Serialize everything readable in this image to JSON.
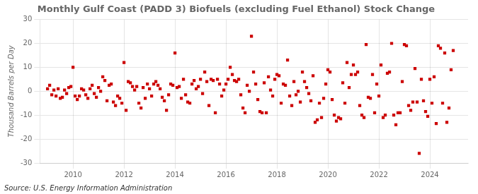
{
  "chart_data": {
    "type": "scatter",
    "title": "Monthly Gulf Coast (PADD 3) Biofuels (excluding Fuel Ethanol) Stock Change",
    "y_label": "Thousand Barrels per Day",
    "annotations": [
      "Source: U.S. Energy Information Administration"
    ],
    "color": "#cc0000",
    "marker": "square",
    "grid": true,
    "xlim": [
      2008.7,
      2025.5
    ],
    "xticks": [
      2010,
      2012,
      2014,
      2016,
      2018,
      2020,
      2022,
      2024
    ],
    "ylim": [
      -30,
      30
    ],
    "yticks": [
      -30,
      -20,
      -10,
      0,
      10,
      20,
      30
    ],
    "x": [
      2009.0,
      2009.083,
      2009.167,
      2009.25,
      2009.333,
      2009.417,
      2009.5,
      2009.583,
      2009.667,
      2009.75,
      2009.833,
      2009.917,
      2010.0,
      2010.083,
      2010.167,
      2010.25,
      2010.333,
      2010.417,
      2010.5,
      2010.583,
      2010.667,
      2010.75,
      2010.833,
      2010.917,
      2011.0,
      2011.083,
      2011.167,
      2011.25,
      2011.333,
      2011.417,
      2011.5,
      2011.583,
      2011.667,
      2011.75,
      2011.833,
      2011.917,
      2012.0,
      2012.083,
      2012.167,
      2012.25,
      2012.333,
      2012.417,
      2012.5,
      2012.583,
      2012.667,
      2012.75,
      2012.833,
      2012.917,
      2013.0,
      2013.083,
      2013.167,
      2013.25,
      2013.333,
      2013.417,
      2013.5,
      2013.583,
      2013.667,
      2013.75,
      2013.833,
      2013.917,
      2014.0,
      2014.083,
      2014.167,
      2014.25,
      2014.333,
      2014.417,
      2014.5,
      2014.583,
      2014.667,
      2014.75,
      2014.833,
      2014.917,
      2015.0,
      2015.083,
      2015.167,
      2015.25,
      2015.333,
      2015.417,
      2015.5,
      2015.583,
      2015.667,
      2015.75,
      2015.833,
      2015.917,
      2016.0,
      2016.083,
      2016.167,
      2016.25,
      2016.333,
      2016.417,
      2016.5,
      2016.583,
      2016.667,
      2016.75,
      2016.833,
      2016.917,
      2017.0,
      2017.083,
      2017.167,
      2017.25,
      2017.333,
      2017.417,
      2017.5,
      2017.583,
      2017.667,
      2017.75,
      2017.833,
      2017.917,
      2018.0,
      2018.083,
      2018.167,
      2018.25,
      2018.333,
      2018.417,
      2018.5,
      2018.583,
      2018.667,
      2018.75,
      2018.833,
      2018.917,
      2019.0,
      2019.083,
      2019.167,
      2019.25,
      2019.333,
      2019.417,
      2019.5,
      2019.583,
      2019.667,
      2019.75,
      2019.833,
      2019.917,
      2020.0,
      2020.083,
      2020.167,
      2020.25,
      2020.333,
      2020.417,
      2020.5,
      2020.583,
      2020.667,
      2020.75,
      2020.833,
      2020.917,
      2021.0,
      2021.083,
      2021.167,
      2021.25,
      2021.333,
      2021.417,
      2021.5,
      2021.583,
      2021.667,
      2021.75,
      2021.833,
      2021.917,
      2022.0,
      2022.083,
      2022.167,
      2022.25,
      2022.333,
      2022.417,
      2022.5,
      2022.583,
      2022.667,
      2022.75,
      2022.833,
      2022.917,
      2023.0,
      2023.083,
      2023.167,
      2023.25,
      2023.333,
      2023.417,
      2023.5,
      2023.583,
      2023.667,
      2023.75,
      2023.833,
      2023.917,
      2024.0,
      2024.083,
      2024.167,
      2024.25,
      2024.333,
      2024.417,
      2024.5,
      2024.583,
      2024.667,
      2024.75,
      2024.833,
      2024.917
    ],
    "values": [
      1.0,
      2.5,
      -1.5,
      0.5,
      -2.0,
      1.0,
      -3.0,
      -2.5,
      0.5,
      -1.0,
      1.5,
      2.0,
      10.0,
      -2.0,
      -3.5,
      -2.0,
      1.0,
      0.5,
      -1.5,
      -3.0,
      1.0,
      2.5,
      -1.0,
      -2.5,
      1.5,
      0.0,
      6.0,
      4.5,
      -4.0,
      2.5,
      3.0,
      -4.5,
      -6.0,
      -2.0,
      -3.0,
      -5.0,
      12.0,
      -8.0,
      4.0,
      3.5,
      2.0,
      0.5,
      2.0,
      -5.0,
      -7.0,
      1.5,
      -3.0,
      3.0,
      1.0,
      -2.0,
      3.0,
      4.0,
      2.5,
      1.0,
      -2.5,
      -4.0,
      -8.0,
      -1.5,
      3.0,
      2.5,
      16.0,
      1.5,
      2.0,
      -3.0,
      5.0,
      -1.5,
      -4.5,
      -5.0,
      3.0,
      4.5,
      1.0,
      2.0,
      5.0,
      -1.0,
      8.0,
      4.0,
      -6.0,
      5.0,
      4.5,
      -9.0,
      5.0,
      3.0,
      -2.0,
      0.5,
      3.0,
      5.0,
      10.0,
      7.0,
      4.5,
      4.0,
      5.0,
      -1.5,
      -7.0,
      -9.0,
      2.5,
      0.0,
      23.0,
      8.0,
      3.0,
      -3.5,
      -8.5,
      -9.0,
      3.5,
      -9.0,
      6.0,
      0.5,
      -2.0,
      5.0,
      7.0,
      6.5,
      -5.0,
      3.0,
      2.5,
      13.0,
      -2.0,
      -6.0,
      4.0,
      -1.5,
      0.0,
      -4.5,
      8.0,
      4.0,
      1.5,
      -1.0,
      -4.0,
      6.5,
      -13.0,
      -12.0,
      -5.0,
      -11.0,
      -3.0,
      3.0,
      9.0,
      8.0,
      -3.5,
      -10.0,
      -12.5,
      -11.0,
      -11.5,
      3.5,
      -5.0,
      12.0,
      1.5,
      7.0,
      11.0,
      7.0,
      8.0,
      -6.0,
      -10.0,
      -11.0,
      19.5,
      -2.5,
      -3.0,
      7.0,
      -9.0,
      3.0,
      -2.0,
      11.0,
      -11.0,
      -10.0,
      7.5,
      8.0,
      20.0,
      -10.0,
      -14.0,
      -9.0,
      -9.0,
      4.0,
      19.5,
      19.0,
      -6.0,
      -8.0,
      -4.5,
      9.5,
      -4.5,
      -26.0,
      5.0,
      -4.0,
      -8.5,
      -10.5,
      5.0,
      -5.0,
      6.0,
      -13.5,
      19.0,
      18.0,
      -5.0,
      16.0,
      -13.0,
      -7.0,
      9.0,
      17.0
    ]
  }
}
